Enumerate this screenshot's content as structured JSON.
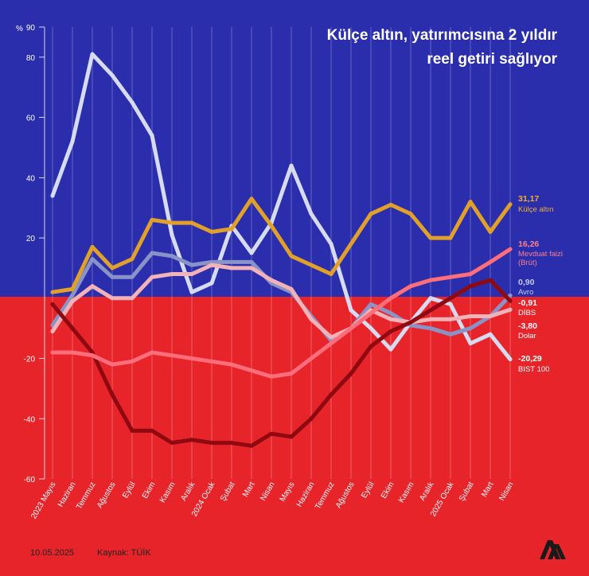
{
  "title_line1": "Külçe altın, yatırımcısına 2 yıldır",
  "title_line2": "reel getiri sağlıyor",
  "date": "10.05.2025",
  "source": "Kaynak: TÜİK",
  "colors": {
    "blue": "#2a2dac",
    "red": "#e8242b"
  },
  "chart_data": {
    "type": "line",
    "y_unit": "%",
    "ylim": [
      -60,
      90
    ],
    "yticks": [
      -60,
      -40,
      -20,
      20,
      40,
      60,
      80,
      90
    ],
    "categories": [
      "2023 Mayıs",
      "Haziran",
      "Temmuz",
      "Ağustos",
      "Eylül",
      "Ekim",
      "Kasım",
      "Aralık",
      "2024 Ocak",
      "Şubat",
      "Mart",
      "Nisan",
      "Mayıs",
      "Haziran",
      "Temmuz",
      "Ağustos",
      "Eylül",
      "Ekim",
      "Kasım",
      "Aralık",
      "2025 Ocak",
      "Şubat",
      "Mart",
      "Nisan"
    ],
    "series": [
      {
        "name": "BIST 100",
        "color": "#d6dbf1",
        "label_value": "-20,29",
        "label_color": "#ffffff",
        "values": [
          34,
          52,
          81,
          74,
          65,
          54,
          21,
          2,
          5,
          24,
          15,
          25,
          44,
          28,
          18,
          -4,
          -10,
          -17,
          -8,
          0,
          -2,
          -15,
          -12,
          -20.29
        ]
      },
      {
        "name": "Avro",
        "color": "#8a93c8",
        "label_value": "0,90",
        "label_color": "#c6cbeb",
        "values": [
          -9,
          1,
          13,
          7,
          7,
          15,
          14,
          11,
          12,
          12,
          12,
          5,
          2,
          -6,
          -14,
          -10,
          -2,
          -5,
          -9,
          -10,
          -12,
          -10,
          -6,
          0.9
        ]
      },
      {
        "name": "Külçe altın",
        "color": "#e0a02a",
        "label_value": "31,17",
        "label_color": "#f0b030",
        "values": [
          2,
          3,
          17,
          10,
          13,
          26,
          25,
          25,
          22,
          23,
          33,
          24,
          14,
          11,
          8,
          18,
          28,
          31,
          28,
          20,
          20,
          32,
          22,
          31.17
        ]
      },
      {
        "name": "Dolar",
        "color": "#f2b2b8",
        "label_value": "-3,80",
        "label_color": "#ffffff",
        "values": [
          -11,
          -1,
          4,
          0,
          0,
          7,
          8,
          8,
          11,
          10,
          10,
          6,
          3,
          -7,
          -13,
          -10,
          -4,
          -7,
          -8,
          -7,
          -7,
          -6,
          -6,
          -3.8
        ]
      },
      {
        "name": "DİBS",
        "color": "#8e0a10",
        "label_value": "-0,91",
        "label_color": "#ffffff",
        "values": [
          -2,
          -10,
          -18,
          -32,
          -44,
          -44,
          -48,
          -47,
          -48,
          -48,
          -49,
          -45,
          -46,
          -40,
          -32,
          -25,
          -16,
          -11,
          -8,
          -4,
          0,
          4,
          6,
          -0.91
        ]
      },
      {
        "name": "Mevduat faizi (Brüt)",
        "color": "#ff6e7a",
        "label_value": "16,26",
        "label_color": "#ff7f8a",
        "values": [
          -18,
          -18,
          -19,
          -22,
          -21,
          -18,
          -19,
          -20,
          -21,
          -22,
          -24,
          -26,
          -25,
          -20,
          -15,
          -10,
          -5,
          0,
          4,
          6,
          7,
          8,
          12,
          16.26
        ]
      }
    ]
  }
}
